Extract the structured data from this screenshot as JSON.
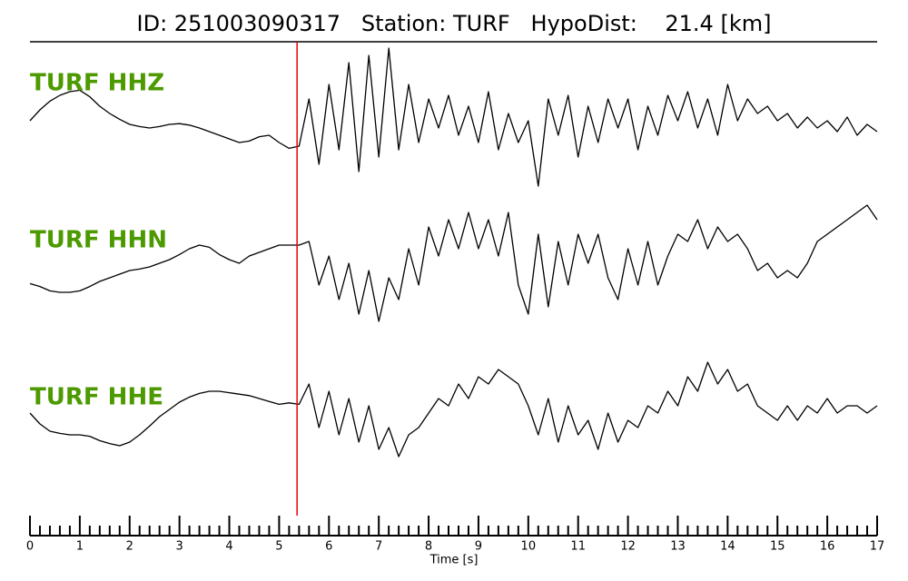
{
  "chart_data": {
    "type": "line",
    "title": "ID: 251003090317   Station: TURF   HypoDist:    21.4 [km]",
    "xlabel": "Time [s]",
    "xlim": [
      0,
      17
    ],
    "xticks": [
      0,
      1,
      2,
      3,
      4,
      5,
      6,
      7,
      8,
      9,
      10,
      11,
      12,
      13,
      14,
      15,
      16,
      17
    ],
    "minor_per_major": 5,
    "ylim": [
      -1,
      1
    ],
    "pick_time": 5.36,
    "pick_color": "#e8000b",
    "label_color": "#4c9a00",
    "x": [
      0,
      0.2,
      0.4,
      0.6,
      0.8,
      1,
      1.2,
      1.4,
      1.6,
      1.8,
      2,
      2.2,
      2.4,
      2.6,
      2.8,
      3,
      3.2,
      3.4,
      3.6,
      3.8,
      4,
      4.2,
      4.4,
      4.6,
      4.8,
      5,
      5.2,
      5.4,
      5.6,
      5.8,
      6,
      6.2,
      6.4,
      6.6,
      6.8,
      7,
      7.2,
      7.4,
      7.6,
      7.8,
      8,
      8.2,
      8.4,
      8.6,
      8.8,
      9,
      9.2,
      9.4,
      9.6,
      9.8,
      10,
      10.2,
      10.4,
      10.6,
      10.8,
      11,
      11.2,
      11.4,
      11.6,
      11.8,
      12,
      12.2,
      12.4,
      12.6,
      12.8,
      13,
      13.2,
      13.4,
      13.6,
      13.8,
      14,
      14.2,
      14.4,
      14.6,
      14.8,
      15,
      15.2,
      15.4,
      15.6,
      15.8,
      16,
      16.2,
      16.4,
      16.6,
      16.8,
      17
    ],
    "series": [
      {
        "name": "TURF HHZ",
        "color": "#000000",
        "values": [
          0,
          0.15,
          0.27,
          0.35,
          0.4,
          0.42,
          0.33,
          0.2,
          0.1,
          0.02,
          -0.05,
          -0.08,
          -0.1,
          -0.08,
          -0.05,
          -0.04,
          -0.06,
          -0.1,
          -0.15,
          -0.2,
          -0.25,
          -0.3,
          -0.28,
          -0.22,
          -0.2,
          -0.3,
          -0.38,
          -0.35,
          0.3,
          -0.6,
          0.5,
          -0.4,
          0.8,
          -0.7,
          0.9,
          -0.5,
          1.0,
          -0.4,
          0.5,
          -0.3,
          0.3,
          -0.1,
          0.35,
          -0.2,
          0.2,
          -0.3,
          0.4,
          -0.4,
          0.1,
          -0.3,
          0.0,
          -0.9,
          0.3,
          -0.2,
          0.35,
          -0.5,
          0.2,
          -0.3,
          0.3,
          -0.1,
          0.3,
          -0.4,
          0.2,
          -0.2,
          0.35,
          0.0,
          0.4,
          -0.1,
          0.3,
          -0.2,
          0.5,
          0.0,
          0.3,
          0.1,
          0.2,
          0.0,
          0.1,
          -0.1,
          0.05,
          -0.1,
          0.0,
          -0.15,
          0.05,
          -0.2,
          -0.05,
          -0.15
        ]
      },
      {
        "name": "TURF HHN",
        "color": "#000000",
        "values": [
          -0.28,
          -0.32,
          -0.38,
          -0.4,
          -0.4,
          -0.38,
          -0.32,
          -0.25,
          -0.2,
          -0.15,
          -0.1,
          -0.08,
          -0.05,
          0.0,
          0.05,
          0.12,
          0.2,
          0.25,
          0.22,
          0.12,
          0.05,
          0.0,
          0.1,
          0.15,
          0.2,
          0.25,
          0.25,
          0.25,
          0.3,
          -0.3,
          0.1,
          -0.5,
          0.0,
          -0.7,
          -0.1,
          -0.8,
          -0.2,
          -0.5,
          0.2,
          -0.3,
          0.5,
          0.1,
          0.6,
          0.2,
          0.7,
          0.2,
          0.6,
          0.1,
          0.7,
          -0.3,
          -0.7,
          0.4,
          -0.6,
          0.3,
          -0.3,
          0.4,
          0.0,
          0.4,
          -0.2,
          -0.5,
          0.2,
          -0.3,
          0.3,
          -0.3,
          0.1,
          0.4,
          0.3,
          0.6,
          0.2,
          0.5,
          0.3,
          0.4,
          0.2,
          -0.1,
          0.0,
          -0.2,
          -0.1,
          -0.2,
          0.0,
          0.3,
          0.4,
          0.5,
          0.6,
          0.7,
          0.8,
          0.6
        ]
      },
      {
        "name": "TURF HHE",
        "color": "#000000",
        "values": [
          0.0,
          -0.15,
          -0.25,
          -0.28,
          -0.3,
          -0.3,
          -0.32,
          -0.38,
          -0.42,
          -0.45,
          -0.4,
          -0.3,
          -0.18,
          -0.05,
          0.05,
          0.15,
          0.22,
          0.27,
          0.3,
          0.3,
          0.28,
          0.26,
          0.24,
          0.2,
          0.16,
          0.12,
          0.14,
          0.12,
          0.4,
          -0.2,
          0.3,
          -0.3,
          0.2,
          -0.4,
          0.1,
          -0.5,
          -0.2,
          -0.6,
          -0.3,
          -0.2,
          0.0,
          0.2,
          0.1,
          0.4,
          0.2,
          0.5,
          0.4,
          0.6,
          0.5,
          0.4,
          0.1,
          -0.3,
          0.2,
          -0.4,
          0.1,
          -0.3,
          -0.1,
          -0.5,
          0.0,
          -0.4,
          -0.1,
          -0.2,
          0.1,
          0.0,
          0.3,
          0.1,
          0.5,
          0.3,
          0.7,
          0.4,
          0.6,
          0.3,
          0.4,
          0.1,
          0.0,
          -0.1,
          0.1,
          -0.1,
          0.1,
          0.0,
          0.2,
          0.0,
          0.1,
          0.1,
          0.0,
          0.1
        ]
      }
    ]
  }
}
